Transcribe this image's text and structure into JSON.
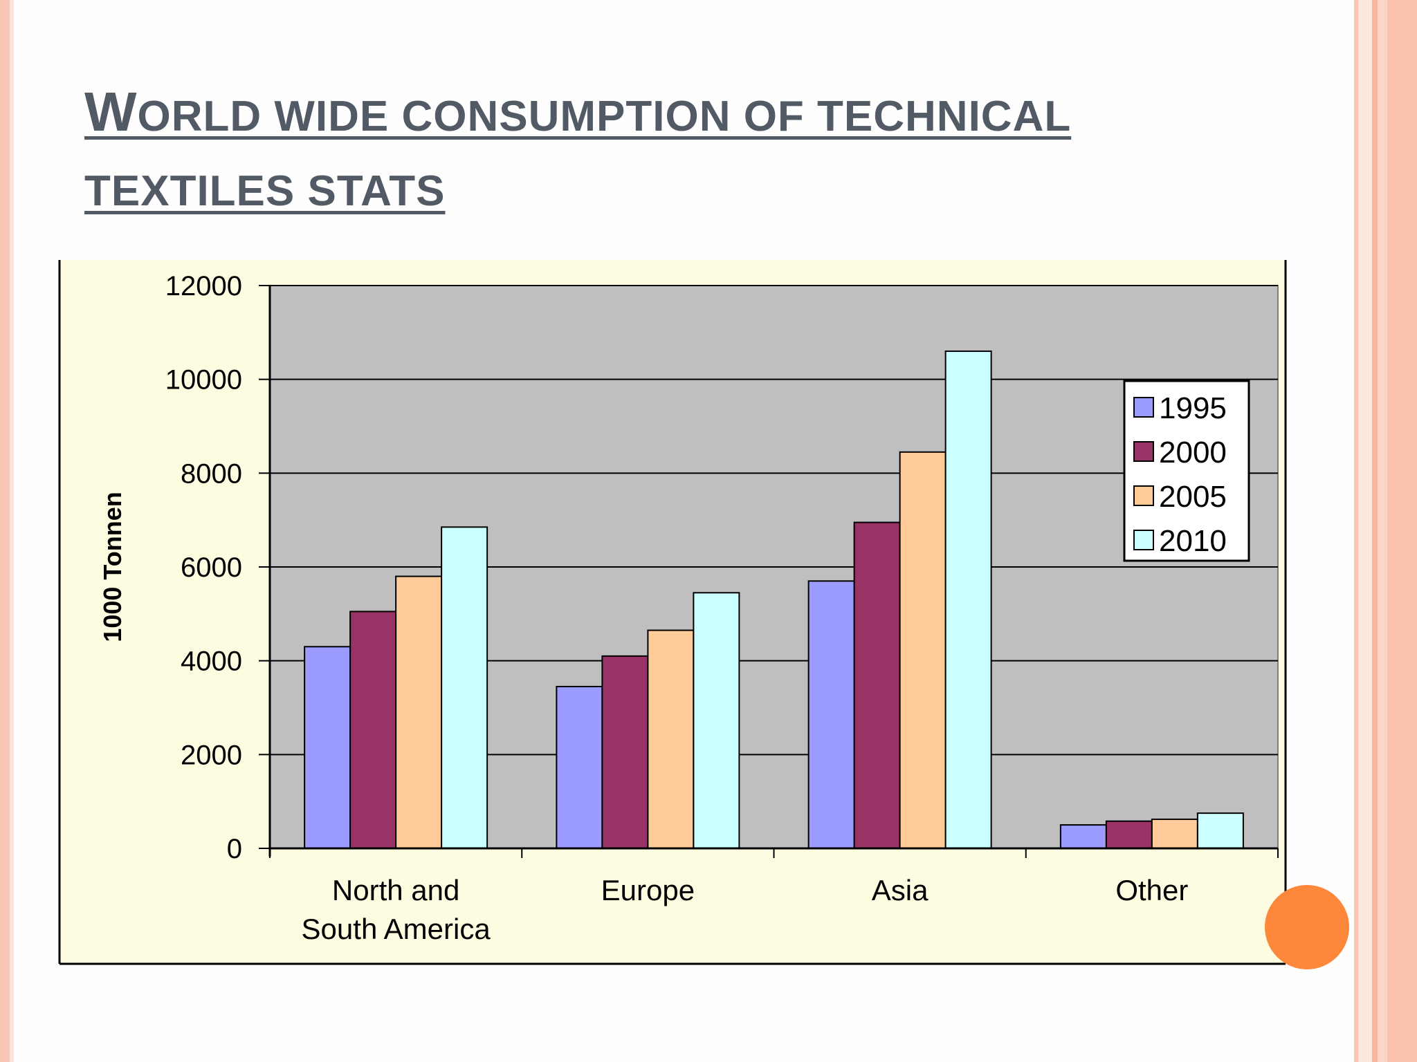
{
  "slide": {
    "title_line1_first": "W",
    "title_line1_rest": "ORLD WIDE CONSUMPTION OF TECHNICAL",
    "title_line2": "TEXTILES STATS"
  },
  "colors": {
    "plot_bg": "#c0bfc0",
    "chart_bg": "#fdfbe0",
    "accent_stripe": "#f7b49e",
    "accent_dot": "#fd883c",
    "title": "#525a66"
  },
  "chart_data": {
    "type": "bar",
    "title": "",
    "xlabel": "",
    "ylabel": "1000 Tonnen",
    "ylim": [
      0,
      12000
    ],
    "yticks": [
      0,
      2000,
      4000,
      6000,
      8000,
      10000,
      12000
    ],
    "yticks_labels": [
      "0",
      "2000",
      "4000",
      "6000",
      "8000",
      "10000",
      "12000"
    ],
    "grid": true,
    "legend_position": "right",
    "categories": [
      [
        "North and",
        "South America"
      ],
      [
        "Europe"
      ],
      [
        "Asia"
      ],
      [
        "Other"
      ]
    ],
    "series": [
      {
        "name": "1995",
        "color": "#9c9cff",
        "values": [
          4300,
          3450,
          5700,
          500
        ]
      },
      {
        "name": "2000",
        "color": "#993366",
        "values": [
          5050,
          4100,
          6950,
          580
        ]
      },
      {
        "name": "2005",
        "color": "#ffcc99",
        "values": [
          5800,
          4650,
          8450,
          620
        ]
      },
      {
        "name": "2010",
        "color": "#ccffff",
        "values": [
          6850,
          5450,
          10600,
          750
        ]
      }
    ]
  }
}
